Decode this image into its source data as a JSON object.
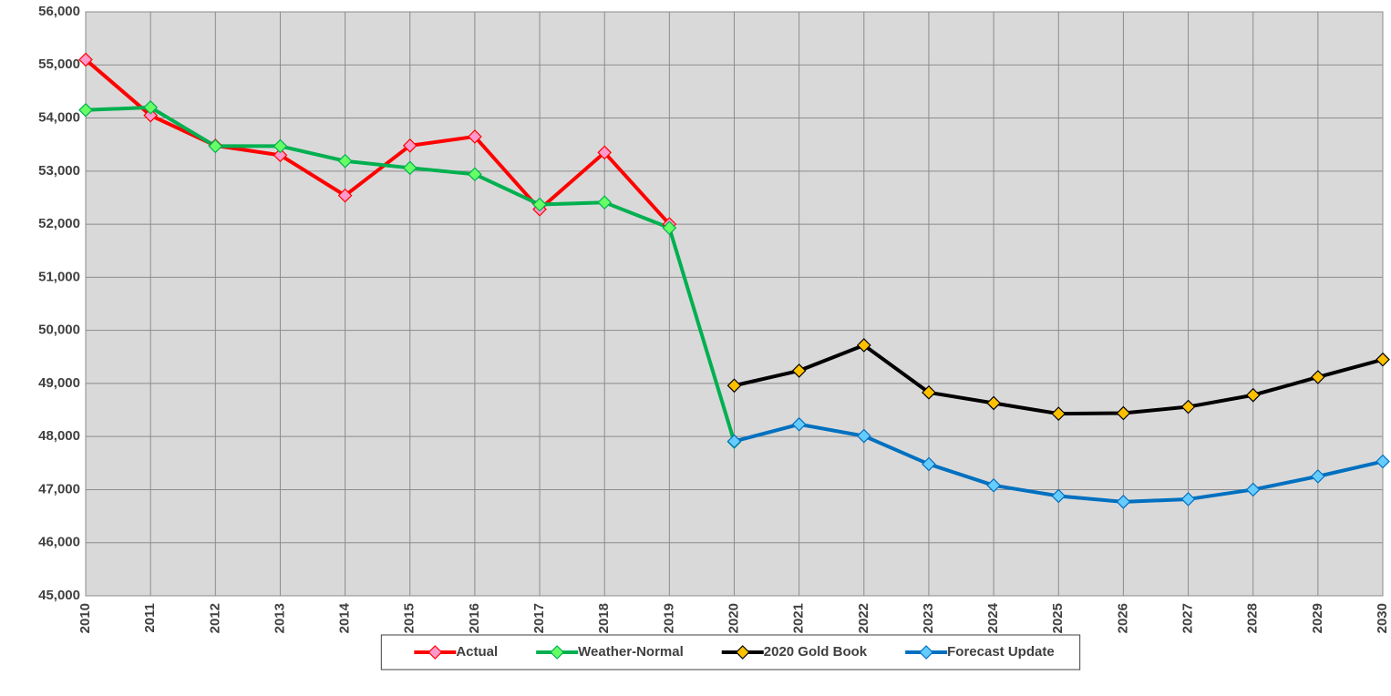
{
  "chart_data": {
    "type": "line",
    "x": [
      2010,
      2011,
      2012,
      2013,
      2014,
      2015,
      2016,
      2017,
      2018,
      2019,
      2020,
      2021,
      2022,
      2023,
      2024,
      2025,
      2026,
      2027,
      2028,
      2029,
      2030
    ],
    "xlim": [
      2010,
      2030
    ],
    "xticks": [
      2010,
      2011,
      2012,
      2013,
      2014,
      2015,
      2016,
      2017,
      2018,
      2019,
      2020,
      2021,
      2022,
      2023,
      2024,
      2025,
      2026,
      2027,
      2028,
      2029,
      2030
    ],
    "ylim": [
      45000,
      56000
    ],
    "yticks": [
      {
        "value": 45000,
        "label": "45,000"
      },
      {
        "value": 46000,
        "label": "46,000"
      },
      {
        "value": 47000,
        "label": "47,000"
      },
      {
        "value": 48000,
        "label": "48,000"
      },
      {
        "value": 49000,
        "label": "49,000"
      },
      {
        "value": 50000,
        "label": "50,000"
      },
      {
        "value": 51000,
        "label": "51,000"
      },
      {
        "value": 52000,
        "label": "52,000"
      },
      {
        "value": 53000,
        "label": "53,000"
      },
      {
        "value": 54000,
        "label": "54,000"
      },
      {
        "value": 55000,
        "label": "55,000"
      },
      {
        "value": 56000,
        "label": "56,000"
      }
    ],
    "grid": true,
    "legend": "bottom",
    "series": [
      {
        "name": "Actual",
        "color": "#ff0000",
        "marker_color": "#ff99cc",
        "values": [
          55100,
          54050,
          53480,
          53300,
          52540,
          53480,
          53650,
          52280,
          53350,
          52000,
          null,
          null,
          null,
          null,
          null,
          null,
          null,
          null,
          null,
          null,
          null
        ]
      },
      {
        "name": "Weather-Normal",
        "color": "#00b050",
        "marker_color": "#66ff66",
        "values": [
          54150,
          54200,
          53470,
          53470,
          53190,
          53060,
          52940,
          52370,
          52410,
          51930,
          47900,
          null,
          null,
          null,
          null,
          null,
          null,
          null,
          null,
          null,
          null
        ]
      },
      {
        "name": "2020 Gold Book",
        "color": "#000000",
        "marker_color": "#ffc000",
        "values": [
          null,
          null,
          null,
          null,
          null,
          null,
          null,
          null,
          null,
          null,
          48960,
          49240,
          49720,
          48830,
          48630,
          48430,
          48440,
          48560,
          48780,
          49120,
          49450
        ]
      },
      {
        "name": "Forecast Update",
        "color": "#0070c0",
        "marker_color": "#66ccff",
        "values": [
          null,
          null,
          null,
          null,
          null,
          null,
          null,
          null,
          null,
          null,
          47910,
          48230,
          48010,
          47480,
          47080,
          46880,
          46770,
          46820,
          47000,
          47250,
          47530
        ]
      }
    ]
  }
}
